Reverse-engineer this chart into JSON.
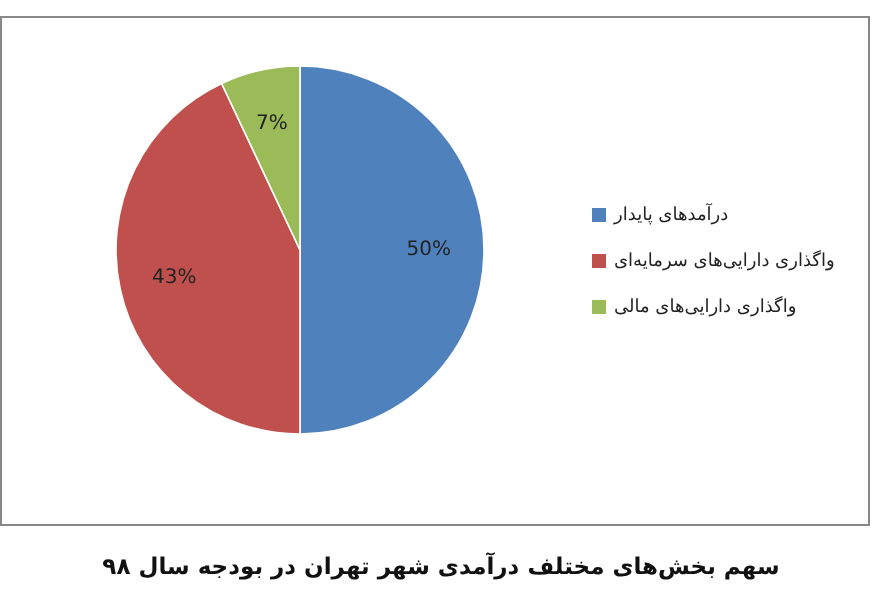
{
  "chart_data": {
    "type": "pie",
    "categories": [
      "درآمدهای پایدار",
      "واگذاری دارایی‌های سرمایه‌ای",
      "واگذاری دارایی‌های مالی"
    ],
    "values": [
      50,
      43,
      7
    ],
    "colors": [
      "#4f81bd",
      "#c0504d",
      "#9bbb59"
    ],
    "value_labels": [
      "50%",
      "43%",
      "7%"
    ],
    "legend": "right",
    "annotations": [
      "سهم بخش‌های مختلف درآمدی شهر تهران در بودجه سال ۹۸"
    ]
  }
}
